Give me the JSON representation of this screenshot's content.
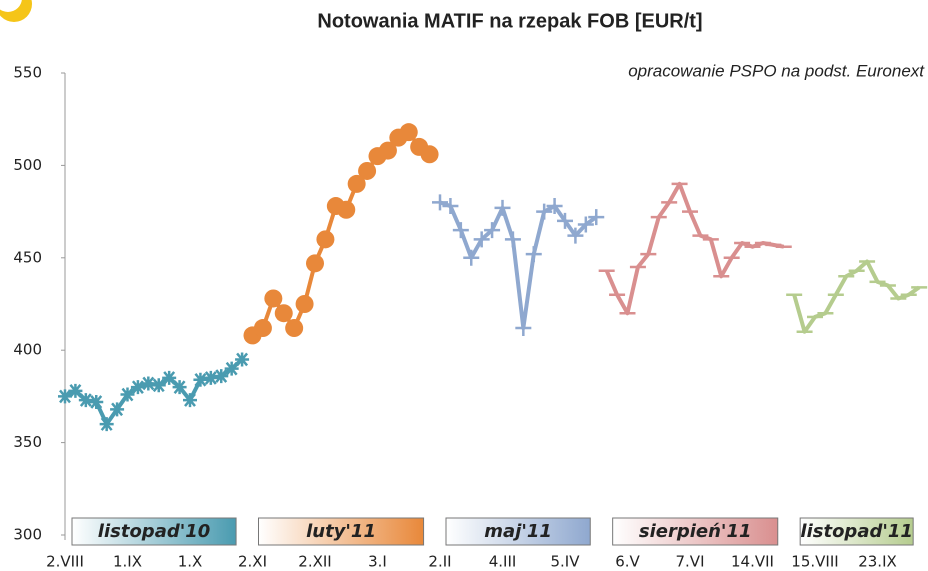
{
  "chart_data": {
    "type": "line",
    "title": "Notowania MATIF na rzepak FOB [EUR/t]",
    "subtitle": "opracowanie PSPO na podst. Euronext",
    "categories": [
      "2.VIII",
      null,
      null,
      null,
      null,
      null,
      "1.IX",
      null,
      null,
      null,
      null,
      null,
      "1.X",
      null,
      null,
      null,
      null,
      null,
      "2.XI",
      null,
      null,
      null,
      null,
      null,
      "2.XII",
      null,
      null,
      null,
      null,
      null,
      "3.I",
      null,
      null,
      null,
      null,
      null,
      "2.II",
      null,
      null,
      null,
      null,
      null,
      "4.III",
      null,
      null,
      null,
      null,
      null,
      "5.IV",
      null,
      null,
      null,
      null,
      null,
      "6.V",
      null,
      null,
      null,
      null,
      null,
      "7.VI",
      null,
      null,
      null,
      null,
      null,
      "14.VII",
      null,
      null,
      null,
      null,
      null,
      "15.VIII",
      null,
      null,
      null,
      null,
      null,
      "23.IX",
      null,
      null,
      null,
      null
    ],
    "ylim": [
      300,
      550
    ],
    "yticks": [
      300,
      350,
      400,
      450,
      500,
      550
    ],
    "grid": false,
    "series": [
      {
        "name": "listopad'10",
        "color": "#4a9bb0",
        "marker": "star",
        "values": [
          375,
          378,
          373,
          372,
          360,
          368,
          376,
          380,
          382,
          381,
          385,
          380,
          373,
          384,
          385,
          386,
          390,
          395,
          null,
          null,
          null,
          null,
          null,
          null,
          null,
          null,
          null,
          null,
          null,
          null,
          null,
          null,
          null,
          null,
          null,
          null,
          null,
          null,
          null,
          null,
          null,
          null,
          null,
          null,
          null,
          null,
          null,
          null,
          null,
          null,
          null,
          null,
          null,
          null,
          null,
          null,
          null,
          null,
          null,
          null,
          null,
          null,
          null,
          null,
          null,
          null,
          null,
          null,
          null,
          null,
          null,
          null,
          null,
          null,
          null,
          null,
          null,
          null,
          null,
          null,
          null,
          null,
          null
        ]
      },
      {
        "name": "luty'11",
        "color": "#e8883a",
        "marker": "circle",
        "values": [
          null,
          null,
          null,
          null,
          null,
          null,
          null,
          null,
          null,
          null,
          null,
          null,
          null,
          null,
          null,
          null,
          null,
          null,
          408,
          412,
          428,
          420,
          412,
          425,
          447,
          460,
          478,
          476,
          490,
          497,
          505,
          508,
          515,
          518,
          510,
          506,
          null,
          null,
          null,
          null,
          null,
          null,
          null,
          null,
          null,
          null,
          null,
          null,
          null,
          null,
          null,
          null,
          null,
          null,
          null,
          null,
          null,
          null,
          null,
          null,
          null,
          null,
          null,
          null,
          null,
          null,
          null,
          null,
          null,
          null,
          null,
          null,
          null,
          null,
          null,
          null,
          null,
          null,
          null,
          null,
          null,
          null,
          null
        ]
      },
      {
        "name": "maj'11",
        "color": "#8fa8cf",
        "marker": "plus",
        "values": [
          null,
          null,
          null,
          null,
          null,
          null,
          null,
          null,
          null,
          null,
          null,
          null,
          null,
          null,
          null,
          null,
          null,
          null,
          null,
          null,
          null,
          null,
          null,
          null,
          null,
          null,
          null,
          null,
          null,
          null,
          null,
          null,
          null,
          null,
          null,
          null,
          480,
          478,
          465,
          450,
          460,
          465,
          477,
          460,
          412,
          452,
          475,
          478,
          470,
          462,
          468,
          472,
          null,
          null,
          null,
          null,
          null,
          null,
          null,
          null,
          null,
          null,
          null,
          null,
          null,
          null,
          null,
          null,
          null,
          null,
          null,
          null,
          null,
          null,
          null,
          null,
          null,
          null,
          null,
          null,
          null,
          null,
          null
        ]
      },
      {
        "name": "sierpień'11",
        "color": "#d98f8f",
        "marker": "dash",
        "values": [
          null,
          null,
          null,
          null,
          null,
          null,
          null,
          null,
          null,
          null,
          null,
          null,
          null,
          null,
          null,
          null,
          null,
          null,
          null,
          null,
          null,
          null,
          null,
          null,
          null,
          null,
          null,
          null,
          null,
          null,
          null,
          null,
          null,
          null,
          null,
          null,
          null,
          null,
          null,
          null,
          null,
          null,
          null,
          null,
          null,
          null,
          null,
          null,
          null,
          null,
          null,
          null,
          443,
          430,
          420,
          445,
          452,
          472,
          480,
          490,
          475,
          462,
          460,
          440,
          450,
          458,
          456,
          458,
          457,
          456,
          null,
          null,
          null,
          null,
          null,
          null,
          null,
          null,
          null,
          null,
          null,
          null,
          null
        ]
      },
      {
        "name": "listopad'11",
        "color": "#b5cc8e",
        "marker": "dash",
        "values": [
          null,
          null,
          null,
          null,
          null,
          null,
          null,
          null,
          null,
          null,
          null,
          null,
          null,
          null,
          null,
          null,
          null,
          null,
          null,
          null,
          null,
          null,
          null,
          null,
          null,
          null,
          null,
          null,
          null,
          null,
          null,
          null,
          null,
          null,
          null,
          null,
          null,
          null,
          null,
          null,
          null,
          null,
          null,
          null,
          null,
          null,
          null,
          null,
          null,
          null,
          null,
          null,
          null,
          null,
          null,
          null,
          null,
          null,
          null,
          null,
          null,
          null,
          null,
          null,
          null,
          null,
          null,
          null,
          null,
          null,
          430,
          410,
          418,
          420,
          430,
          440,
          443,
          448,
          437,
          435,
          428,
          430,
          434
        ]
      }
    ]
  }
}
